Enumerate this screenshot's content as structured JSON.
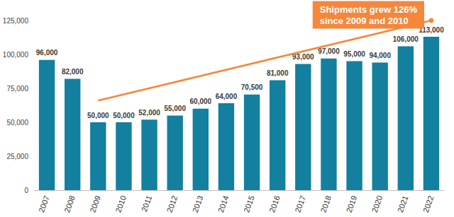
{
  "chart_data": {
    "type": "bar",
    "categories": [
      "2007",
      "2008",
      "2009",
      "2010",
      "2011",
      "2012",
      "2013",
      "2014",
      "2015",
      "2016",
      "2017",
      "2018",
      "2019",
      "2020",
      "2021",
      "2022"
    ],
    "values": [
      96000,
      82000,
      50000,
      50000,
      52000,
      55000,
      60000,
      64000,
      70500,
      81000,
      93000,
      97000,
      95000,
      94000,
      106000,
      113000
    ],
    "value_labels": [
      "96,000",
      "82,000",
      "50,000",
      "50,000",
      "52,000",
      "55,000",
      "60,000",
      "64,000",
      "70,500",
      "81,000",
      "93,000",
      "97,000",
      "95,000",
      "94,000",
      "106,000",
      "113,000"
    ],
    "color": "#13809f",
    "ylim": [
      0,
      125000
    ],
    "yticks": [
      0,
      {
        "value": 25000,
        "label": "25,000"
      },
      {
        "value": 50000,
        "label": "50,000"
      },
      {
        "value": 75000,
        "label": "75,000"
      },
      {
        "value": 100000,
        "label": "100,000"
      },
      {
        "value": 125000,
        "label": "125,000"
      }
    ],
    "grid": false,
    "data_labels": true,
    "annotations": [
      {
        "text": [
          "Shipments grew 126%",
          "since 2009 and 2010"
        ],
        "color": "#f5873c"
      }
    ],
    "trend_line": {
      "start": {
        "x": "2009",
        "y": 66000
      },
      "end": {
        "x": "2022",
        "y": 125000
      },
      "color": "#f5873c"
    }
  }
}
